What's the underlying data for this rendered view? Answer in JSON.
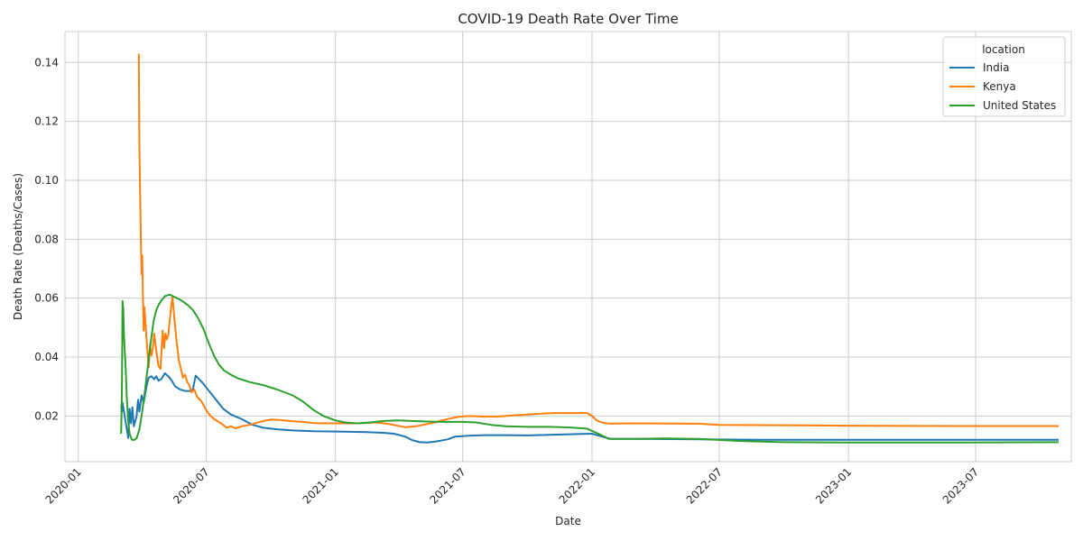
{
  "chart_data": {
    "type": "line",
    "title": "COVID-19 Death Rate Over Time",
    "xlabel": "Date",
    "ylabel": "Death Rate (Deaths/Cases)",
    "x_axis": "date",
    "xlim": [
      "2019-12-13",
      "2023-11-14"
    ],
    "ylim": [
      0.0045,
      0.1505
    ],
    "x_ticks": [
      "2020-01",
      "2020-07",
      "2021-01",
      "2021-07",
      "2022-01",
      "2022-07",
      "2023-01",
      "2023-07"
    ],
    "y_ticks": [
      "0.02",
      "0.04",
      "0.06",
      "0.08",
      "0.10",
      "0.12",
      "0.14"
    ],
    "grid": true,
    "legend": {
      "title": "location",
      "position": "top-right"
    },
    "series": [
      {
        "name": "India",
        "color": "#1f77b4",
        "points": [
          [
            "2020-03-02",
            0.0235
          ],
          [
            "2020-03-03",
            0.0215
          ],
          [
            "2020-03-04",
            0.0245
          ],
          [
            "2020-03-12",
            0.0125
          ],
          [
            "2020-03-14",
            0.0225
          ],
          [
            "2020-03-16",
            0.0175
          ],
          [
            "2020-03-18",
            0.023
          ],
          [
            "2020-03-20",
            0.0165
          ],
          [
            "2020-03-24",
            0.02
          ],
          [
            "2020-03-26",
            0.0255
          ],
          [
            "2020-03-28",
            0.0215
          ],
          [
            "2020-03-31",
            0.027
          ],
          [
            "2020-04-03",
            0.0245
          ],
          [
            "2020-04-07",
            0.03
          ],
          [
            "2020-04-10",
            0.033
          ],
          [
            "2020-04-14",
            0.0335
          ],
          [
            "2020-04-18",
            0.0325
          ],
          [
            "2020-04-21",
            0.0335
          ],
          [
            "2020-04-24",
            0.032
          ],
          [
            "2020-04-28",
            0.0325
          ],
          [
            "2020-05-03",
            0.0345
          ],
          [
            "2020-05-08",
            0.0335
          ],
          [
            "2020-05-13",
            0.032
          ],
          [
            "2020-05-18",
            0.03
          ],
          [
            "2020-05-25",
            0.029
          ],
          [
            "2020-06-01",
            0.0285
          ],
          [
            "2020-06-08",
            0.0285
          ],
          [
            "2020-06-12",
            0.029
          ],
          [
            "2020-06-16",
            0.0337
          ],
          [
            "2020-06-25",
            0.0315
          ],
          [
            "2020-07-05",
            0.0285
          ],
          [
            "2020-07-15",
            0.0255
          ],
          [
            "2020-07-25",
            0.0225
          ],
          [
            "2020-08-05",
            0.0205
          ],
          [
            "2020-08-20",
            0.019
          ],
          [
            "2020-09-05",
            0.017
          ],
          [
            "2020-09-20",
            0.016
          ],
          [
            "2020-10-10",
            0.0155
          ],
          [
            "2020-11-01",
            0.0151
          ],
          [
            "2020-12-01",
            0.0148
          ],
          [
            "2021-01-15",
            0.0147
          ],
          [
            "2021-02-15",
            0.0145
          ],
          [
            "2021-03-10",
            0.0143
          ],
          [
            "2021-03-25",
            0.014
          ],
          [
            "2021-04-10",
            0.013
          ],
          [
            "2021-04-20",
            0.0118
          ],
          [
            "2021-05-01",
            0.0111
          ],
          [
            "2021-05-12",
            0.011
          ],
          [
            "2021-05-25",
            0.0114
          ],
          [
            "2021-06-10",
            0.0121
          ],
          [
            "2021-06-20",
            0.013
          ],
          [
            "2021-07-10",
            0.0133
          ],
          [
            "2021-08-01",
            0.0135
          ],
          [
            "2021-09-01",
            0.0135
          ],
          [
            "2021-10-01",
            0.0134
          ],
          [
            "2021-11-01",
            0.0136
          ],
          [
            "2021-12-01",
            0.0138
          ],
          [
            "2022-01-01",
            0.014
          ],
          [
            "2022-01-15",
            0.013
          ],
          [
            "2022-01-28",
            0.0122
          ],
          [
            "2022-03-01",
            0.0122
          ],
          [
            "2022-06-01",
            0.0121
          ],
          [
            "2022-09-01",
            0.0119
          ],
          [
            "2023-01-01",
            0.0119
          ],
          [
            "2023-06-01",
            0.0119
          ],
          [
            "2023-10-27",
            0.0119
          ]
        ]
      },
      {
        "name": "Kenya",
        "color": "#ff7f0e",
        "points": [
          [
            "2020-03-27",
            0.143
          ],
          [
            "2020-03-28",
            0.11
          ],
          [
            "2020-03-29",
            0.095
          ],
          [
            "2020-03-30",
            0.08
          ],
          [
            "2020-03-31",
            0.068
          ],
          [
            "2020-04-01",
            0.0745
          ],
          [
            "2020-04-02",
            0.06
          ],
          [
            "2020-04-03",
            0.049
          ],
          [
            "2020-04-04",
            0.057
          ],
          [
            "2020-04-06",
            0.05
          ],
          [
            "2020-04-08",
            0.043
          ],
          [
            "2020-04-10",
            0.0365
          ],
          [
            "2020-04-12",
            0.044
          ],
          [
            "2020-04-14",
            0.0405
          ],
          [
            "2020-04-16",
            0.043
          ],
          [
            "2020-04-18",
            0.048
          ],
          [
            "2020-04-21",
            0.042
          ],
          [
            "2020-04-24",
            0.037
          ],
          [
            "2020-04-27",
            0.036
          ],
          [
            "2020-04-30",
            0.049
          ],
          [
            "2020-05-02",
            0.043
          ],
          [
            "2020-05-04",
            0.048
          ],
          [
            "2020-05-06",
            0.046
          ],
          [
            "2020-05-08",
            0.0475
          ],
          [
            "2020-05-12",
            0.057
          ],
          [
            "2020-05-14",
            0.0605
          ],
          [
            "2020-05-17",
            0.052
          ],
          [
            "2020-05-20",
            0.045
          ],
          [
            "2020-05-23",
            0.039
          ],
          [
            "2020-05-26",
            0.036
          ],
          [
            "2020-05-29",
            0.033
          ],
          [
            "2020-06-01",
            0.034
          ],
          [
            "2020-06-04",
            0.0315
          ],
          [
            "2020-06-07",
            0.0305
          ],
          [
            "2020-06-10",
            0.028
          ],
          [
            "2020-06-14",
            0.029
          ],
          [
            "2020-06-18",
            0.0265
          ],
          [
            "2020-06-24",
            0.025
          ],
          [
            "2020-07-01",
            0.022
          ],
          [
            "2020-07-07",
            0.02
          ],
          [
            "2020-07-15",
            0.0185
          ],
          [
            "2020-07-22",
            0.0175
          ],
          [
            "2020-07-30",
            0.016
          ],
          [
            "2020-08-05",
            0.0165
          ],
          [
            "2020-08-12",
            0.0158
          ],
          [
            "2020-08-20",
            0.0165
          ],
          [
            "2020-09-01",
            0.017
          ],
          [
            "2020-09-15",
            0.018
          ],
          [
            "2020-10-01",
            0.0188
          ],
          [
            "2020-10-15",
            0.0186
          ],
          [
            "2020-11-01",
            0.0182
          ],
          [
            "2020-11-15",
            0.018
          ],
          [
            "2020-12-01",
            0.0176
          ],
          [
            "2021-01-01",
            0.0175
          ],
          [
            "2021-02-01",
            0.0175
          ],
          [
            "2021-03-01",
            0.0178
          ],
          [
            "2021-03-20",
            0.0172
          ],
          [
            "2021-04-10",
            0.0162
          ],
          [
            "2021-04-25",
            0.0165
          ],
          [
            "2021-05-10",
            0.0172
          ],
          [
            "2021-05-25",
            0.018
          ],
          [
            "2021-06-10",
            0.019
          ],
          [
            "2021-06-25",
            0.0197
          ],
          [
            "2021-07-10",
            0.02
          ],
          [
            "2021-08-01",
            0.0198
          ],
          [
            "2021-08-20",
            0.0198
          ],
          [
            "2021-09-10",
            0.0202
          ],
          [
            "2021-10-01",
            0.0205
          ],
          [
            "2021-10-20",
            0.0208
          ],
          [
            "2021-11-10",
            0.021
          ],
          [
            "2021-12-01",
            0.021
          ],
          [
            "2021-12-25",
            0.021
          ],
          [
            "2022-01-01",
            0.02
          ],
          [
            "2022-01-08",
            0.0185
          ],
          [
            "2022-01-15",
            0.0178
          ],
          [
            "2022-01-25",
            0.0174
          ],
          [
            "2022-03-01",
            0.0175
          ],
          [
            "2022-06-01",
            0.0174
          ],
          [
            "2022-07-01",
            0.017
          ],
          [
            "2022-09-01",
            0.0169
          ],
          [
            "2023-01-01",
            0.0167
          ],
          [
            "2023-06-01",
            0.0166
          ],
          [
            "2023-10-27",
            0.0166
          ]
        ]
      },
      {
        "name": "United States",
        "color": "#2ca02c",
        "points": [
          [
            "2020-03-01",
            0.014
          ],
          [
            "2020-03-02",
            0.0145
          ],
          [
            "2020-03-03",
            0.03
          ],
          [
            "2020-03-04",
            0.059
          ],
          [
            "2020-03-05",
            0.056
          ],
          [
            "2020-03-06",
            0.047
          ],
          [
            "2020-03-07",
            0.042
          ],
          [
            "2020-03-08",
            0.038
          ],
          [
            "2020-03-09",
            0.033
          ],
          [
            "2020-03-10",
            0.026
          ],
          [
            "2020-03-12",
            0.018
          ],
          [
            "2020-03-14",
            0.014
          ],
          [
            "2020-03-17",
            0.012
          ],
          [
            "2020-03-20",
            0.0118
          ],
          [
            "2020-03-24",
            0.0125
          ],
          [
            "2020-03-28",
            0.0155
          ],
          [
            "2020-04-01",
            0.0215
          ],
          [
            "2020-04-05",
            0.029
          ],
          [
            "2020-04-09",
            0.037
          ],
          [
            "2020-04-13",
            0.045
          ],
          [
            "2020-04-17",
            0.052
          ],
          [
            "2020-04-21",
            0.056
          ],
          [
            "2020-04-25",
            0.058
          ],
          [
            "2020-04-29",
            0.0595
          ],
          [
            "2020-05-04",
            0.0608
          ],
          [
            "2020-05-10",
            0.0612
          ],
          [
            "2020-05-16",
            0.0605
          ],
          [
            "2020-05-22",
            0.0598
          ],
          [
            "2020-05-28",
            0.059
          ],
          [
            "2020-06-04",
            0.0578
          ],
          [
            "2020-06-12",
            0.056
          ],
          [
            "2020-06-20",
            0.053
          ],
          [
            "2020-06-28",
            0.049
          ],
          [
            "2020-07-05",
            0.0445
          ],
          [
            "2020-07-12",
            0.0405
          ],
          [
            "2020-07-19",
            0.0375
          ],
          [
            "2020-07-26",
            0.0355
          ],
          [
            "2020-08-05",
            0.034
          ],
          [
            "2020-08-15",
            0.0328
          ],
          [
            "2020-09-01",
            0.0315
          ],
          [
            "2020-09-20",
            0.0305
          ],
          [
            "2020-10-10",
            0.029
          ],
          [
            "2020-11-01",
            0.027
          ],
          [
            "2020-11-15",
            0.025
          ],
          [
            "2020-12-01",
            0.022
          ],
          [
            "2020-12-15",
            0.02
          ],
          [
            "2021-01-01",
            0.0185
          ],
          [
            "2021-01-15",
            0.0178
          ],
          [
            "2021-02-01",
            0.0175
          ],
          [
            "2021-02-20",
            0.0178
          ],
          [
            "2021-03-10",
            0.0183
          ],
          [
            "2021-04-01",
            0.0185
          ],
          [
            "2021-05-01",
            0.0182
          ],
          [
            "2021-06-01",
            0.018
          ],
          [
            "2021-07-01",
            0.018
          ],
          [
            "2021-07-20",
            0.0178
          ],
          [
            "2021-08-10",
            0.017
          ],
          [
            "2021-09-01",
            0.0165
          ],
          [
            "2021-10-01",
            0.0163
          ],
          [
            "2021-11-01",
            0.0163
          ],
          [
            "2021-12-01",
            0.0161
          ],
          [
            "2021-12-25",
            0.0157
          ],
          [
            "2022-01-10",
            0.014
          ],
          [
            "2022-01-25",
            0.0122
          ],
          [
            "2022-03-01",
            0.0122
          ],
          [
            "2022-04-15",
            0.0124
          ],
          [
            "2022-06-01",
            0.0122
          ],
          [
            "2022-08-01",
            0.0115
          ],
          [
            "2022-10-01",
            0.0111
          ],
          [
            "2023-01-01",
            0.011
          ],
          [
            "2023-06-01",
            0.011
          ],
          [
            "2023-10-27",
            0.0111
          ]
        ]
      }
    ]
  }
}
